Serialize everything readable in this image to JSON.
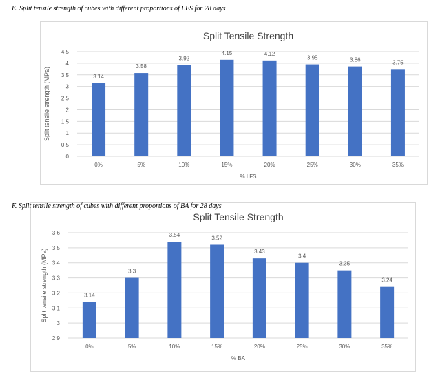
{
  "captions": [
    "E.   Split tensile strength of cubes with different proportions of LFS for 28 days",
    "F.   Split tensile strength of cubes with different proportions of BA for 28 days"
  ],
  "colors": {
    "bar": "#4472c4",
    "grid": "#d9d9d9",
    "axis_text": "#595959",
    "title": "#404040"
  },
  "chart_data": [
    {
      "type": "bar",
      "title": "Split Tensile Strength",
      "xlabel": "% LFS",
      "ylabel": "Split tensile strength (MPa)",
      "categories": [
        "0%",
        "5%",
        "10%",
        "15%",
        "20%",
        "25%",
        "30%",
        "35%"
      ],
      "values": [
        3.14,
        3.58,
        3.92,
        4.15,
        4.12,
        3.95,
        3.86,
        3.75
      ],
      "ylim": [
        0,
        4.5
      ],
      "yticks": [
        "0",
        "0.5",
        "1",
        "1.5",
        "2",
        "2.5",
        "3",
        "3.5",
        "4",
        "4.5"
      ],
      "grid": true,
      "data_labels": true
    },
    {
      "type": "bar",
      "title": "Split Tensile Strength",
      "xlabel": "% BA",
      "ylabel": "Split tensile strength (MPa)",
      "categories": [
        "0%",
        "5%",
        "10%",
        "15%",
        "20%",
        "25%",
        "30%",
        "35%"
      ],
      "values": [
        3.14,
        3.3,
        3.54,
        3.52,
        3.43,
        3.4,
        3.35,
        3.24
      ],
      "ylim": [
        2.9,
        3.6
      ],
      "yticks": [
        "2.9",
        "3",
        "3.1",
        "3.2",
        "3.3",
        "3.4",
        "3.5",
        "3.6"
      ],
      "grid": true,
      "data_labels": true
    }
  ]
}
